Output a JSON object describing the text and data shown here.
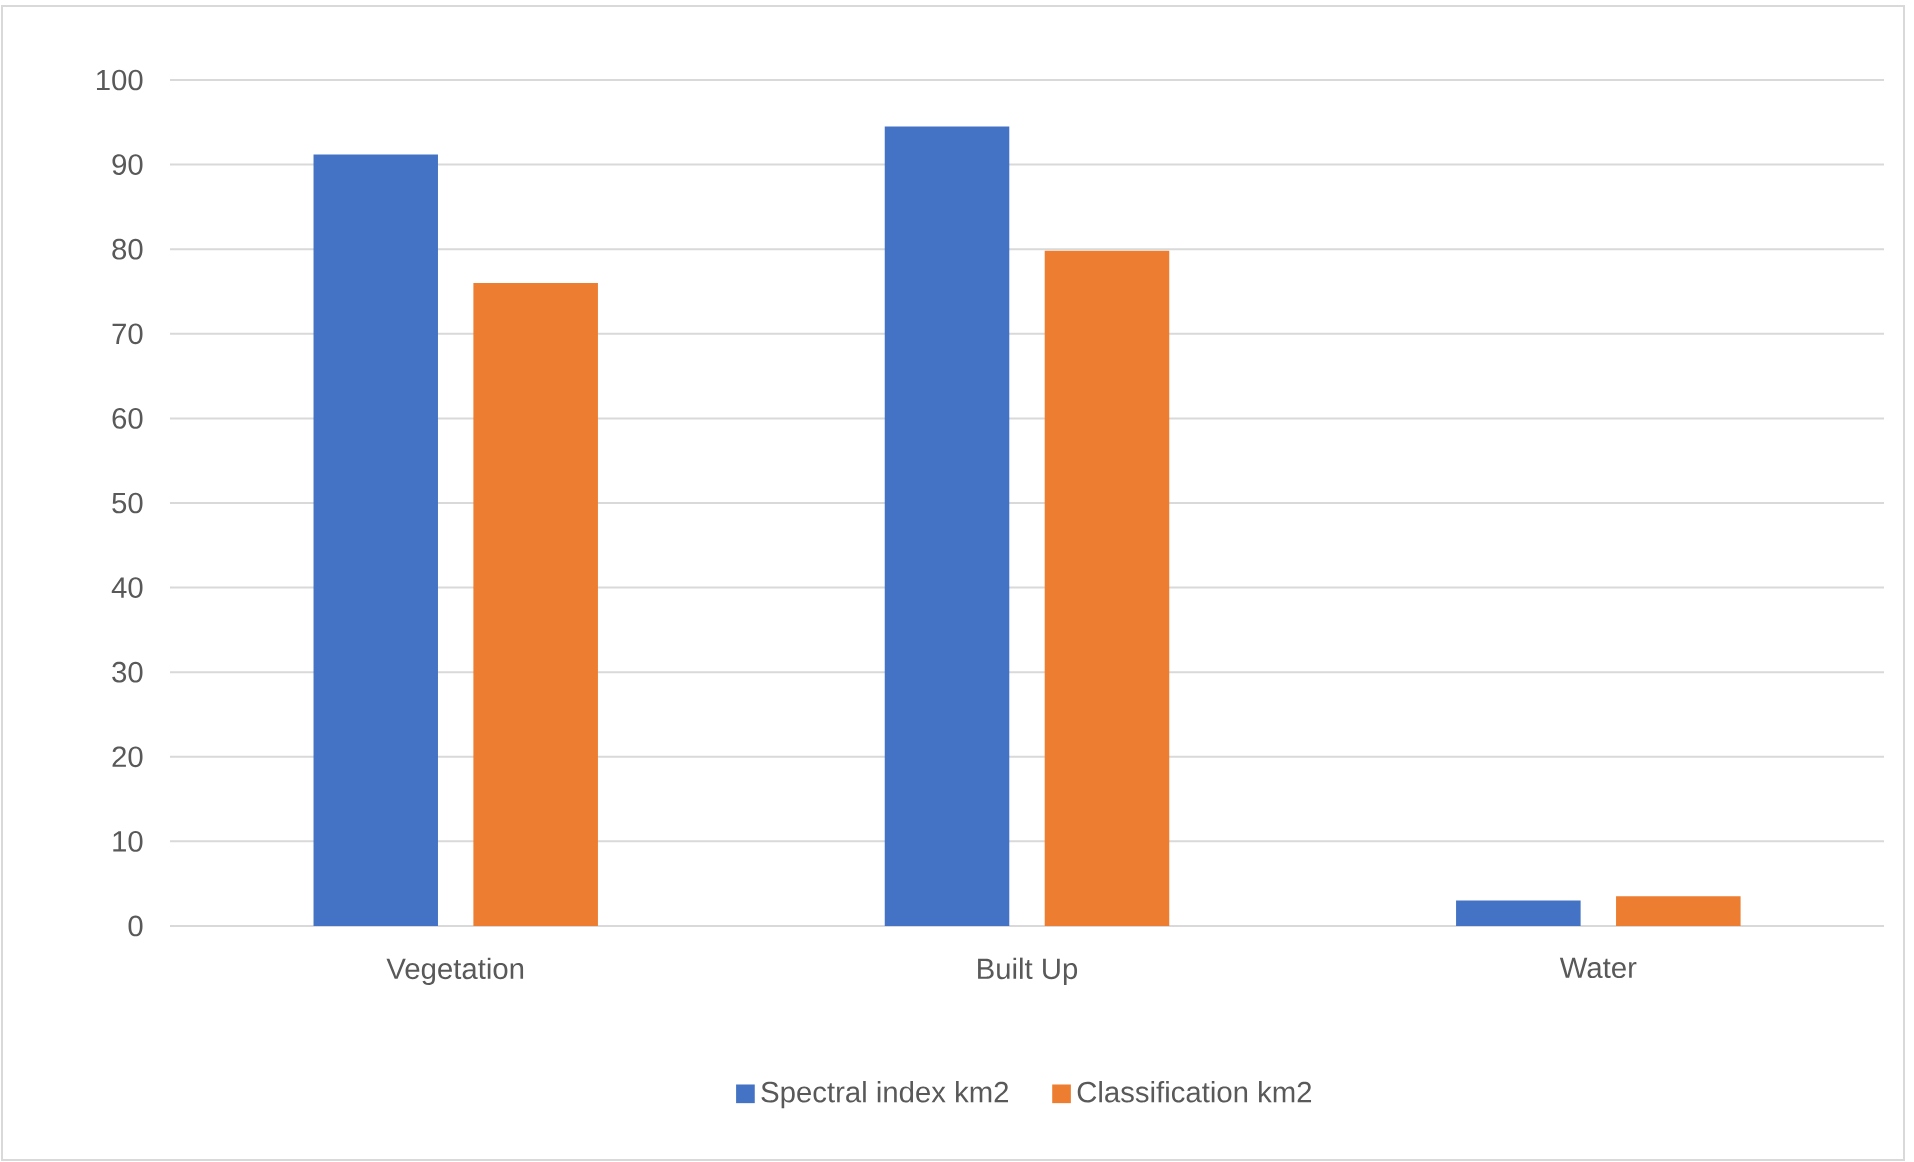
{
  "chart_data": {
    "type": "bar",
    "categories": [
      "Vegetation",
      "Built Up",
      "Water"
    ],
    "series": [
      {
        "name": "Spectral index km2",
        "color": "#4472c4",
        "values": [
          91.2,
          94.5,
          3.0
        ]
      },
      {
        "name": "Classification km2",
        "color": "#ed7d31",
        "values": [
          76.0,
          79.8,
          3.5
        ]
      }
    ],
    "ylim": [
      0,
      100
    ],
    "yticks": [
      0,
      10,
      20,
      30,
      40,
      50,
      60,
      70,
      80,
      90,
      100
    ],
    "grid": "y",
    "legend": "bottom"
  }
}
